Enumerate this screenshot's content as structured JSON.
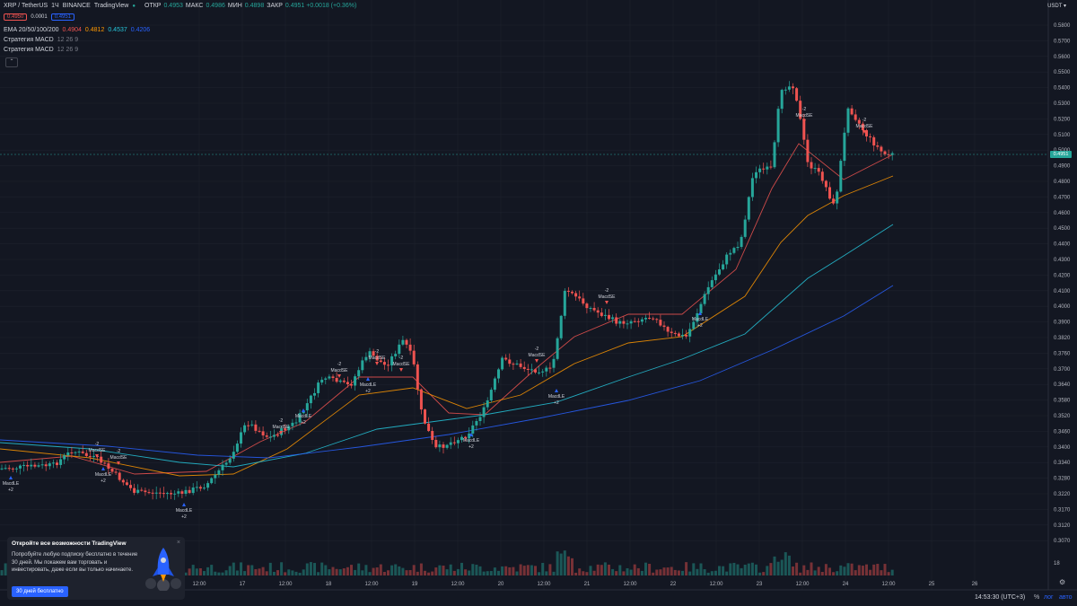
{
  "header": {
    "symbol": "XRP / TetherUS",
    "interval": "1Ч",
    "exchange": "BINANCE",
    "source": "TradingView",
    "ohlc": [
      {
        "label": "ОТКР",
        "value": "0.4953"
      },
      {
        "label": "МАКС",
        "value": "0.4986"
      },
      {
        "label": "МИН",
        "value": "0.4898"
      },
      {
        "label": "ЗАКР",
        "value": "0.4951 +0.0018 (+0.36%)"
      }
    ],
    "sell_price": "0.4950",
    "spread": "0.0001",
    "buy_price": "0.4951"
  },
  "indicators": [
    {
      "name": "EMA 20/50/100/200",
      "values": [
        "0.4904",
        "0.4812",
        "0.4537",
        "0.4206"
      ],
      "colors": [
        "#ef5350",
        "#ff9800",
        "#26c6da",
        "#2962ff"
      ]
    },
    {
      "name": "Стратегия MACD",
      "params": "12 26 9"
    },
    {
      "name": "Стратегия MACD",
      "params": "12 26 9"
    }
  ],
  "currency": "USDT ▾",
  "price_axis": [
    "0.5800",
    "0.5700",
    "0.5600",
    "0.5500",
    "0.5400",
    "0.5300",
    "0.5200",
    "0.5100",
    "0.5000",
    "0.4900",
    "0.4800",
    "0.4700",
    "0.4600",
    "0.4500",
    "0.4400",
    "0.4300",
    "0.4200",
    "0.4100",
    "0.4000",
    "0.3900",
    "0.3820",
    "0.3760",
    "0.3700",
    "0.3640",
    "0.3580",
    "0.3520",
    "0.3460",
    "0.3400",
    "0.3340",
    "0.3280",
    "0.3220",
    "0.3170",
    "0.3120",
    "0.3070"
  ],
  "last_price": "0.4951",
  "time_axis": [
    "12:00",
    "17",
    "12:00",
    "18",
    "12:00",
    "19",
    "12:00",
    "20",
    "12:00",
    "21",
    "12:00",
    "22",
    "12:00",
    "23",
    "12:00",
    "24",
    "12:00",
    "25",
    "26"
  ],
  "volume_axis_label": "18",
  "signals": {
    "long_text": "MacdLE",
    "long_qty": "+2",
    "short_text": "MacdSE",
    "short_qty": "-2"
  },
  "promo": {
    "title": "Откройте все возможности TradingView",
    "text": "Попробуйте любую подписку бесплатно в течение 30 дней. Мы покажем вам торговать и инвестировать, даже если вы только начинаете.",
    "button": "30 дней бесплатно",
    "close": "×"
  },
  "footer": {
    "clock": "14:53:30 (UTC+3)",
    "percent": "%",
    "log": "лог",
    "auto": "авто"
  },
  "colors": {
    "background": "#131722",
    "up": "#26a69a",
    "down": "#ef5350",
    "accent": "#2962ff"
  },
  "chart_data": {
    "type": "candlestick",
    "series": [
      {
        "name": "EMA 20/50/100/200",
        "values": [
          "0.4904",
          "0.4812",
          "0.4537",
          "0.4206"
        ]
      }
    ]
  }
}
